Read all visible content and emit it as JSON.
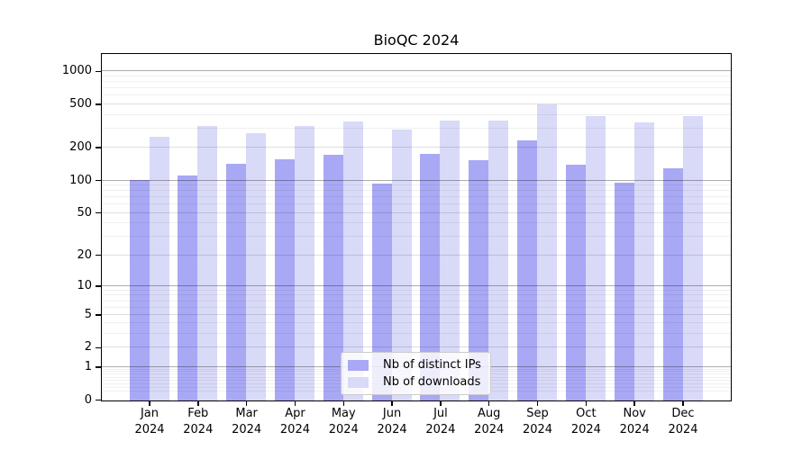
{
  "chart_data": {
    "type": "bar",
    "title": "BioQC 2024",
    "year_label": "2024",
    "categories": [
      "Jan",
      "Feb",
      "Mar",
      "Apr",
      "May",
      "Jun",
      "Jul",
      "Aug",
      "Sep",
      "Oct",
      "Nov",
      "Dec"
    ],
    "series": [
      {
        "name": "Nb of distinct IPs",
        "color": "#a8a8f5",
        "values": [
          103,
          112,
          145,
          157,
          174,
          95,
          176,
          156,
          237,
          140,
          97,
          131
        ]
      },
      {
        "name": "Nb of downloads",
        "color": "#d9d9f8",
        "values": [
          257,
          318,
          277,
          322,
          350,
          295,
          362,
          357,
          503,
          395,
          348,
          395
        ]
      }
    ],
    "y_axis": {
      "scale": "log1p",
      "max": 1430,
      "ticks": [
        1000,
        500,
        200,
        100,
        50,
        20,
        10,
        5,
        2,
        1,
        0
      ],
      "minor_ticks": [
        0.2,
        0.3,
        0.4,
        0.5,
        0.6,
        0.7,
        0.8,
        0.9,
        3,
        4,
        6,
        7,
        8,
        9,
        30,
        40,
        60,
        70,
        80,
        90,
        300,
        400,
        600,
        700,
        800,
        900
      ]
    },
    "grid": true,
    "legend_position": "bottom-center"
  }
}
